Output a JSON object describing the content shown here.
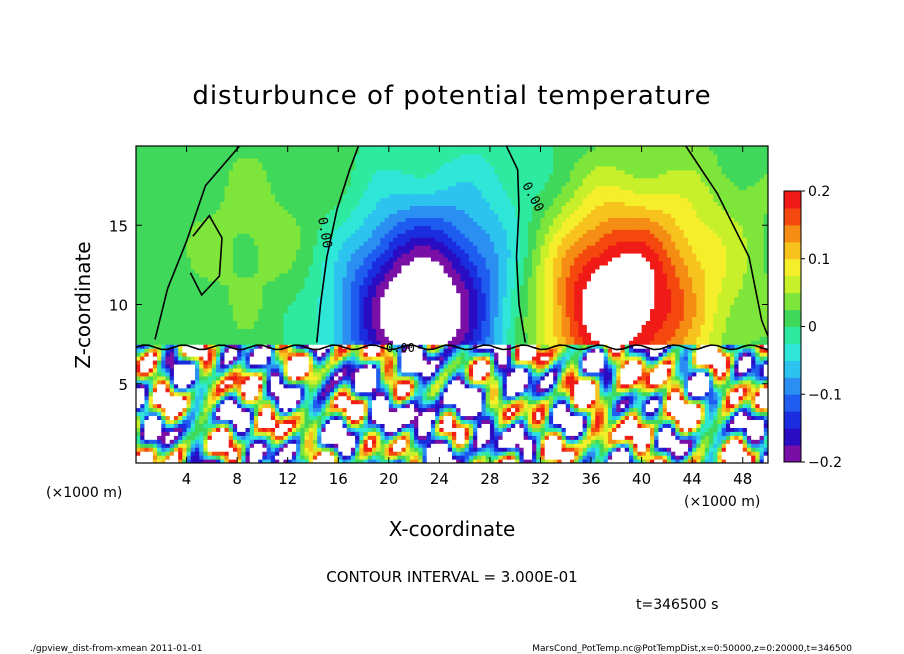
{
  "chart_data": {
    "type": "heatmap",
    "title": "disturbunce of potential temperature",
    "xlabel": "X-coordinate",
    "ylabel": "Z-coordinate",
    "x_unit": "(×1000 m)",
    "y_unit": "(×1000 m)",
    "xlim": [
      0,
      50
    ],
    "ylim": [
      0,
      20
    ],
    "x_ticks": [
      4,
      8,
      12,
      16,
      20,
      24,
      28,
      32,
      36,
      40,
      44,
      48
    ],
    "y_ticks": [
      5,
      10,
      15
    ],
    "colorbar": {
      "range": [
        -0.2,
        0.2
      ],
      "ticks": [
        0.2,
        0.1,
        0,
        -0.1,
        -0.2
      ],
      "tick_labels": [
        "0.2",
        "0.1",
        "0",
        "−0.1",
        "−0.2"
      ],
      "levels": [
        -0.2,
        -0.175,
        -0.15,
        -0.125,
        -0.1,
        -0.075,
        -0.05,
        -0.025,
        0,
        0.025,
        0.05,
        0.075,
        0.1,
        0.125,
        0.15,
        0.175,
        0.2
      ],
      "colors": [
        "#7a0fa6",
        "#2a0cc2",
        "#1a2ee0",
        "#1f5cf0",
        "#2b8ff2",
        "#2cc4ef",
        "#2fe6d8",
        "#2ee9a0",
        "#40d85a",
        "#7ee63a",
        "#c8f02a",
        "#f5ee2a",
        "#f7c21e",
        "#f58d14",
        "#f4480f",
        "#f01a16",
        "#f27d88"
      ]
    },
    "contour_labels": [
      "0.00",
      "0.00",
      "0.00"
    ],
    "contour_interval_text": "CONTOUR INTERVAL = 3.000E-01",
    "time_text": "t=346500 s",
    "grid": false
  },
  "footer": {
    "left": "./gpview_dist-from-xmean  2011-01-01",
    "right": "MarsCond_PotTemp.nc@PotTempDist,x=0:50000,z=0:20000,t=346500"
  },
  "colors": {
    "frame": "#000000",
    "background": "#ffffff"
  }
}
